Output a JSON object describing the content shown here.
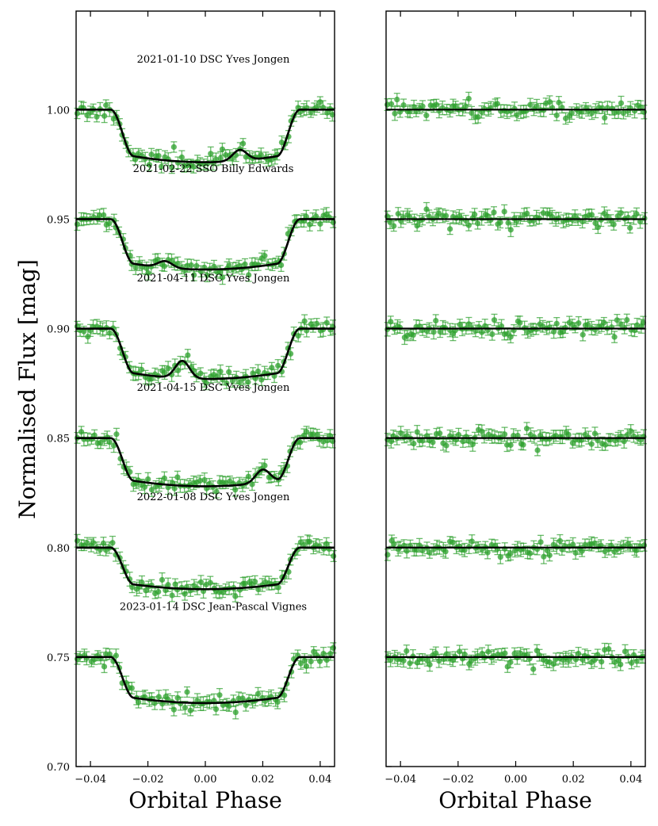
{
  "chart_data": [
    {
      "type": "scatter",
      "panel": "left",
      "xlabel": "Orbital Phase",
      "ylabel": "Normalised Flux [mag]",
      "xlim": [
        -0.045,
        0.045
      ],
      "ylim": [
        0.7,
        1.045
      ],
      "xticks": [
        -0.04,
        -0.02,
        0.0,
        0.02,
        0.04
      ],
      "xtick_labels": [
        "−0.04",
        "−0.02",
        "0.00",
        "0.02",
        "0.04"
      ],
      "yticks": [
        0.7,
        0.75,
        0.8,
        0.85,
        0.9,
        0.95,
        1.0
      ],
      "ytick_labels": [
        "0.70",
        "0.75",
        "0.80",
        "0.85",
        "0.90",
        "0.95",
        "1.00"
      ],
      "marker_color": "#2ca02c",
      "model_color": "#000000",
      "series": [
        {
          "name": "2021-01-10 DSC Yves Jongen",
          "baseline": 1.0,
          "depth": 0.024,
          "bump": {
            "center": 0.012,
            "height": 0.005
          },
          "seed": 11
        },
        {
          "name": "2021-02-22 SSO Billy Edwards",
          "baseline": 0.95,
          "depth": 0.023,
          "bump": {
            "center": -0.014,
            "height": 0.003
          },
          "seed": 23
        },
        {
          "name": "2021-04-11 DSC Yves Jongen",
          "baseline": 0.9,
          "depth": 0.023,
          "bump": {
            "center": -0.008,
            "height": 0.008
          },
          "seed": 37
        },
        {
          "name": "2021-04-15 DSC Yves Jongen",
          "baseline": 0.85,
          "depth": 0.022,
          "bump": {
            "center": 0.02,
            "height": 0.006
          },
          "seed": 41
        },
        {
          "name": "2022-01-08 DSC Yves Jongen",
          "baseline": 0.8,
          "depth": 0.019,
          "bump": null,
          "seed": 53
        },
        {
          "name": "2023-01-14 DSC Jean-Pascal Vignes",
          "baseline": 0.75,
          "depth": 0.021,
          "bump": null,
          "seed": 67
        }
      ],
      "transit": {
        "t1": -0.033,
        "t4": 0.033,
        "ingress": 0.008
      }
    },
    {
      "type": "scatter",
      "panel": "right",
      "description": "residuals",
      "xlabel": "Orbital Phase",
      "xlim": [
        -0.045,
        0.045
      ],
      "ylim": [
        0.7,
        1.045
      ],
      "xticks": [
        -0.04,
        -0.02,
        0.0,
        0.02,
        0.04
      ],
      "xtick_labels": [
        "−0.04",
        "−0.02",
        "0.00",
        "0.02",
        "0.04"
      ],
      "series": [
        {
          "baseline": 1.0,
          "seed": 101
        },
        {
          "baseline": 0.95,
          "seed": 202
        },
        {
          "baseline": 0.9,
          "seed": 303
        },
        {
          "baseline": 0.85,
          "seed": 404
        },
        {
          "baseline": 0.8,
          "seed": 505
        },
        {
          "baseline": 0.75,
          "seed": 606
        }
      ]
    }
  ]
}
